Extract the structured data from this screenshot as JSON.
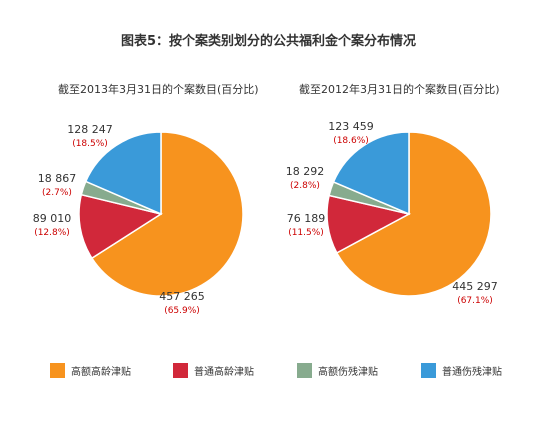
{
  "title": "图表5：按个案类别划分的公共福利金个案分布情况",
  "colors": {
    "high_elderly": "#f7931e",
    "normal_elderly": "#d1283a",
    "high_disability": "#87ab8e",
    "normal_disability": "#3a9ad9",
    "percent_text": "#cc0000"
  },
  "legend": [
    {
      "label": "高额高龄津贴",
      "color": "#f7931e"
    },
    {
      "label": "普通高龄津贴",
      "color": "#d1283a"
    },
    {
      "label": "高额伤残津贴",
      "color": "#87ab8e"
    },
    {
      "label": "普通伤残津贴",
      "color": "#3a9ad9"
    }
  ],
  "chart_data": [
    {
      "type": "pie",
      "title": "截至2013年3月31日的个案数目(百分比)",
      "slices": [
        {
          "category": "高额高龄津贴",
          "value": 457265,
          "value_label": "457 265",
          "percent_label": "(65.9%)",
          "color": "#f7931e"
        },
        {
          "category": "普通高龄津贴",
          "value": 89010,
          "value_label": "89 010",
          "percent_label": "(12.8%)",
          "color": "#d1283a"
        },
        {
          "category": "高额伤残津贴",
          "value": 18867,
          "value_label": "18 867",
          "percent_label": "(2.7%)",
          "color": "#87ab8e"
        },
        {
          "category": "普通伤残津贴",
          "value": 128247,
          "value_label": "128 247",
          "percent_label": "(18.5%)",
          "color": "#3a9ad9"
        }
      ]
    },
    {
      "type": "pie",
      "title": "截至2012年3月31日的个案数目(百分比)",
      "slices": [
        {
          "category": "高额高龄津贴",
          "value": 445297,
          "value_label": "445 297",
          "percent_label": "(67.1%)",
          "color": "#f7931e"
        },
        {
          "category": "普通高龄津贴",
          "value": 76189,
          "value_label": "76 189",
          "percent_label": "(11.5%)",
          "color": "#d1283a"
        },
        {
          "category": "高额伤残津贴",
          "value": 18292,
          "value_label": "18 292",
          "percent_label": "(2.8%)",
          "color": "#87ab8e"
        },
        {
          "category": "普通伤残津贴",
          "value": 123459,
          "value_label": "123 459",
          "percent_label": "(18.6%)",
          "color": "#3a9ad9"
        }
      ]
    }
  ]
}
